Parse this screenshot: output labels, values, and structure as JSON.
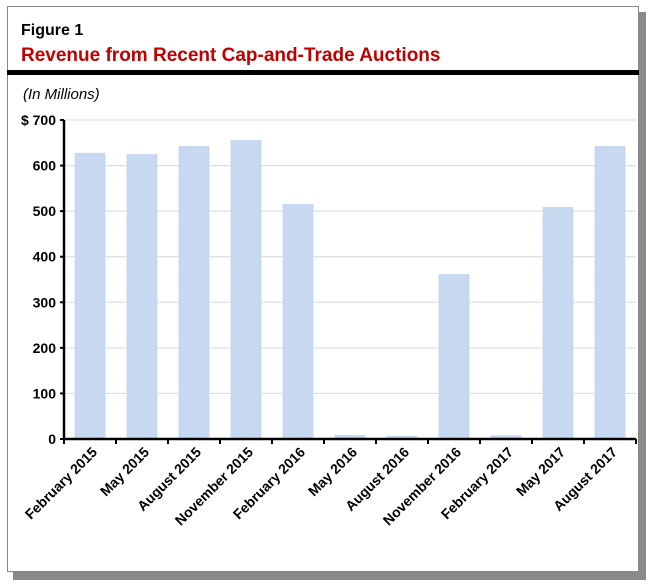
{
  "figure_label": "Figure  1",
  "chart_data": {
    "type": "bar",
    "title": "Revenue from Recent Cap-and-Trade Auctions",
    "ylabel": "(In Millions)",
    "xlabel": "",
    "categories": [
      "February 2015",
      "May 2015",
      "August 2015",
      "November 2015",
      "February 2016",
      "May 2016",
      "August 2016",
      "November 2016",
      "February 2017",
      "May 2017",
      "August 2017"
    ],
    "values": [
      628,
      625,
      643,
      656,
      516,
      9,
      7,
      362,
      8,
      509,
      643
    ],
    "ylim": [
      0,
      700
    ],
    "yticks": [
      0,
      100,
      200,
      300,
      400,
      500,
      600,
      700
    ],
    "ytick_labels": [
      "0",
      "100",
      "200",
      "300",
      "400",
      "500",
      "600",
      "$ 700"
    ],
    "grid": true,
    "bar_color": "#c6d9f0",
    "title_color": "#c00000"
  }
}
